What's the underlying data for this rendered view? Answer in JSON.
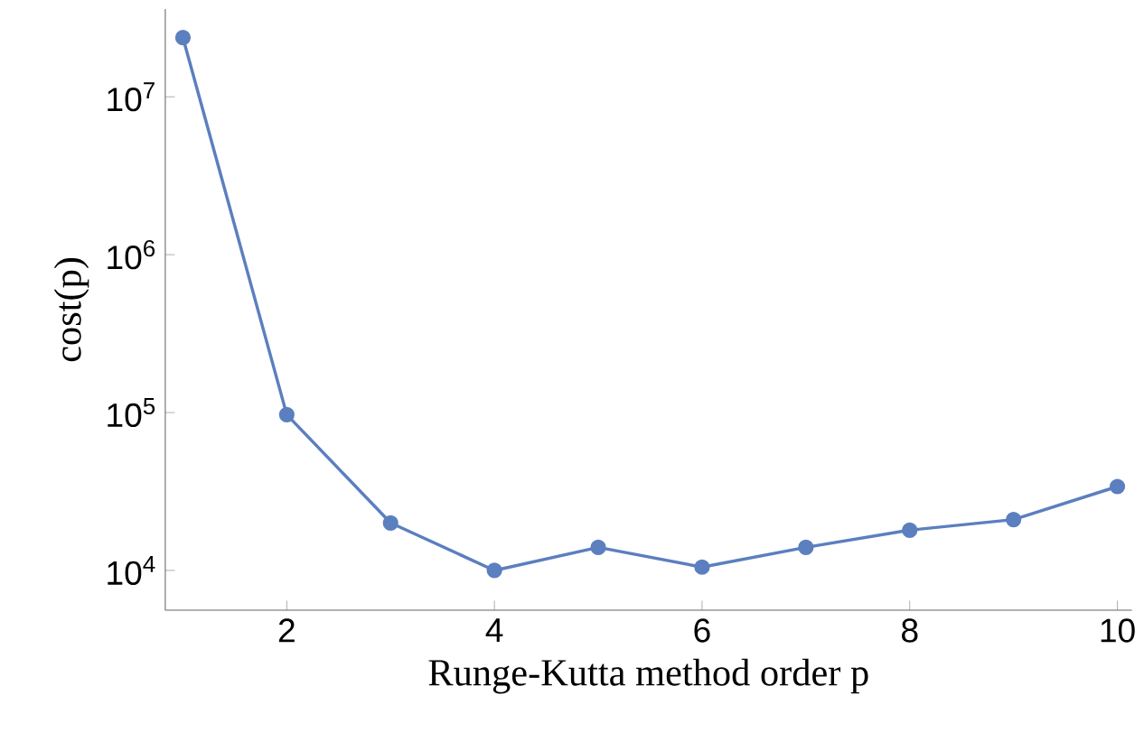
{
  "chart_data": {
    "type": "line",
    "xlabel": "Runge-Kutta method order p",
    "ylabel": "cost(p)",
    "log": "y",
    "marker": "circle",
    "line_style": "solid",
    "x": [
      1,
      2,
      3,
      4,
      5,
      6,
      7,
      8,
      9,
      10
    ],
    "series": [
      {
        "color": "#5b7fbf",
        "values": [
          23700000,
          97000,
          20000,
          10000,
          14000,
          10500,
          14000,
          18000,
          21000,
          34000
        ]
      }
    ],
    "xlim": [
      0.83,
      10.14
    ],
    "ylim": [
      5600,
      36000000
    ],
    "xticks": [
      2,
      4,
      6,
      8,
      10
    ],
    "yticks": [
      {
        "value": 10000,
        "label": "10$^{4}$"
      },
      {
        "value": 100000,
        "label": "10$^{5}$"
      },
      {
        "value": 1000000,
        "label": "10$^{6}$"
      },
      {
        "value": 10000000,
        "label": "10$^{7}$"
      }
    ]
  }
}
